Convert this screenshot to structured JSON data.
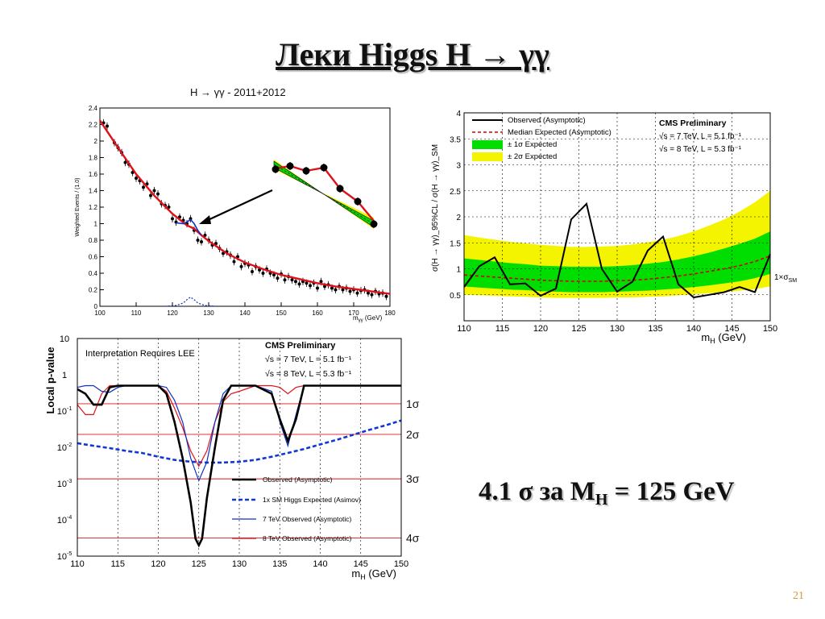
{
  "slide": {
    "title": "Леки Higgs H → γγ",
    "statement": {
      "prefix": "4.1 σ за M",
      "subscript": "H",
      "suffix": " = 125 GeV"
    },
    "page_number": "21"
  },
  "colors": {
    "fit": "#e0101a",
    "data_points": "#000000",
    "band_1sigma": "#00dd00",
    "band_2sigma": "#f4f400",
    "expected": "#d00000",
    "observed_7tev": "#1030c0",
    "expected_asimov": "#1038d8",
    "observed_8tev": "#e0141a"
  },
  "chart_data": [
    {
      "type": "scatter",
      "title": "H → γγ - 2011+2012",
      "xlabel": "m_γγ (GeV)",
      "ylabel": "Weighted Events / (1.0)",
      "xlim": [
        100,
        180
      ],
      "ylim": [
        0,
        2.4
      ],
      "x_ticks": [
        100,
        110,
        120,
        130,
        140,
        150,
        160,
        170,
        180
      ],
      "y_ticks": [
        0,
        0.2,
        0.4,
        0.6,
        0.8,
        1,
        1.2,
        1.4,
        1.6,
        1.8,
        2,
        2.2,
        2.4
      ],
      "series": [
        {
          "kind": "data",
          "x": [
            101,
            102,
            104,
            105,
            106,
            107,
            108,
            109,
            110,
            111,
            112,
            113,
            114,
            115,
            116,
            117,
            118,
            119,
            120,
            121,
            122,
            123,
            124,
            125,
            126,
            127,
            128,
            129,
            130,
            131,
            132,
            133,
            134,
            135,
            136,
            137,
            138,
            139,
            140,
            141,
            142,
            143,
            144,
            145,
            146,
            147,
            148,
            149,
            150,
            151,
            152,
            153,
            154,
            155,
            156,
            157,
            158,
            159,
            160,
            161,
            162,
            163,
            164,
            165,
            166,
            167,
            168,
            169,
            170,
            171,
            172,
            173,
            174,
            175,
            176,
            177,
            178,
            179
          ],
          "y": [
            2.22,
            2.18,
            1.98,
            1.92,
            1.86,
            1.74,
            1.72,
            1.62,
            1.55,
            1.52,
            1.44,
            1.48,
            1.34,
            1.4,
            1.36,
            1.24,
            1.22,
            1.2,
            1.06,
            1.02,
            1.08,
            1.04,
            1.0,
            1.06,
            0.92,
            0.8,
            0.78,
            0.86,
            0.8,
            0.74,
            0.76,
            0.7,
            0.64,
            0.66,
            0.62,
            0.54,
            0.6,
            0.48,
            0.52,
            0.5,
            0.42,
            0.48,
            0.44,
            0.4,
            0.45,
            0.4,
            0.38,
            0.34,
            0.39,
            0.32,
            0.36,
            0.32,
            0.3,
            0.27,
            0.3,
            0.28,
            0.25,
            0.28,
            0.22,
            0.3,
            0.24,
            0.26,
            0.22,
            0.2,
            0.24,
            0.2,
            0.22,
            0.18,
            0.2,
            0.16,
            0.19,
            0.2,
            0.16,
            0.14,
            0.18,
            0.15,
            0.16,
            0.12
          ]
        },
        {
          "kind": "fit",
          "x": [
            100,
            105,
            110,
            115,
            120,
            124,
            126,
            128,
            130,
            135,
            140,
            145,
            150,
            155,
            160,
            165,
            170,
            175,
            180
          ],
          "y": [
            2.25,
            1.92,
            1.6,
            1.34,
            1.12,
            0.98,
            0.94,
            0.86,
            0.79,
            0.64,
            0.53,
            0.45,
            0.38,
            0.33,
            0.28,
            0.24,
            0.21,
            0.18,
            0.15
          ]
        },
        {
          "kind": "signal_dotted",
          "x": [
            118,
            121,
            123,
            124,
            125,
            126,
            127,
            129,
            132
          ],
          "y": [
            0.0,
            0.01,
            0.04,
            0.08,
            0.11,
            0.08,
            0.04,
            0.01,
            0.0
          ]
        }
      ]
    },
    {
      "type": "area",
      "xlabel": "m_H (GeV)",
      "ylabel": "σ(H → γγ)_95%CL / σ(H → γγ)_SM",
      "xlim": [
        110,
        150
      ],
      "ylim": [
        0,
        4
      ],
      "x_ticks": [
        110,
        115,
        120,
        125,
        130,
        135,
        140,
        145,
        150
      ],
      "y_ticks": [
        0.5,
        1,
        1.5,
        2,
        2.5,
        3,
        3.5,
        4
      ],
      "reference_label": "1×σ_SM",
      "annotations": [
        "CMS Preliminary",
        "√s = 7 TeV, L = 5.1 fb⁻¹",
        "√s = 8 TeV, L = 5.3 fb⁻¹"
      ],
      "legend": [
        "Observed (Asymptotic)",
        "Median Expected (Asymptotic)",
        "± 1σ Expected",
        "± 2σ Expected"
      ],
      "x": [
        110,
        112,
        114,
        116,
        118,
        120,
        122,
        124,
        126,
        128,
        130,
        132,
        134,
        136,
        138,
        140,
        142,
        144,
        146,
        148,
        150
      ],
      "series": [
        {
          "name": "Observed (Asymptotic)",
          "values": [
            0.65,
            1.05,
            1.22,
            0.7,
            0.72,
            0.48,
            0.62,
            1.95,
            2.25,
            1.0,
            0.56,
            0.75,
            1.35,
            1.62,
            0.7,
            0.45,
            0.5,
            0.55,
            0.65,
            0.55,
            1.28
          ]
        },
        {
          "name": "Median Expected (Asymptotic)",
          "values": [
            0.88,
            0.86,
            0.84,
            0.82,
            0.8,
            0.78,
            0.77,
            0.76,
            0.76,
            0.76,
            0.77,
            0.78,
            0.8,
            0.83,
            0.86,
            0.9,
            0.95,
            1.0,
            1.06,
            1.14,
            1.25
          ]
        },
        {
          "name": "± 1σ Expected",
          "lower": [
            0.66,
            0.64,
            0.62,
            0.6,
            0.59,
            0.57,
            0.56,
            0.55,
            0.55,
            0.55,
            0.56,
            0.57,
            0.58,
            0.6,
            0.62,
            0.65,
            0.68,
            0.72,
            0.76,
            0.82,
            0.9
          ],
          "upper": [
            1.2,
            1.17,
            1.14,
            1.11,
            1.09,
            1.06,
            1.05,
            1.04,
            1.04,
            1.04,
            1.05,
            1.07,
            1.1,
            1.13,
            1.18,
            1.24,
            1.31,
            1.39,
            1.48,
            1.58,
            1.72
          ]
        },
        {
          "name": "± 2σ Expected",
          "lower": [
            0.5,
            0.49,
            0.48,
            0.47,
            0.46,
            0.45,
            0.44,
            0.44,
            0.44,
            0.44,
            0.45,
            0.45,
            0.46,
            0.47,
            0.49,
            0.51,
            0.53,
            0.55,
            0.58,
            0.61,
            0.66
          ],
          "upper": [
            1.65,
            1.6,
            1.56,
            1.52,
            1.49,
            1.46,
            1.44,
            1.42,
            1.42,
            1.43,
            1.44,
            1.47,
            1.51,
            1.56,
            1.63,
            1.72,
            1.83,
            1.95,
            2.1,
            2.28,
            2.5
          ]
        }
      ]
    },
    {
      "type": "line",
      "xlabel": "m_H (GeV)",
      "ylabel": "Local p-value",
      "y_scale": "log",
      "xlim": [
        110,
        150
      ],
      "ylim": [
        1e-05,
        10
      ],
      "x_ticks": [
        110,
        115,
        120,
        125,
        130,
        135,
        140,
        145,
        150
      ],
      "y_ticks": [
        {
          "base": "10",
          "exp": "-5"
        },
        {
          "base": "10",
          "exp": "-4"
        },
        {
          "base": "10",
          "exp": "-3"
        },
        {
          "base": "10",
          "exp": "-2"
        },
        {
          "base": "10",
          "exp": "-1"
        },
        {
          "base": "1",
          "exp": ""
        },
        {
          "base": "10",
          "exp": ""
        }
      ],
      "note": "Interpretation Requires LEE",
      "annotations": [
        "CMS Preliminary",
        "√s = 7 TeV, L = 5.1 fb⁻¹",
        "√s = 8 TeV, L = 5.3 fb⁻¹"
      ],
      "sigma_lines": [
        {
          "label": "1σ",
          "p": 0.1587
        },
        {
          "label": "2σ",
          "p": 0.02275
        },
        {
          "label": "3σ",
          "p": 0.00135
        },
        {
          "label": "4σ",
          "p": 3.17e-05
        }
      ],
      "legend": [
        "Observed (Asymptotic)",
        "1x SM Higgs Expected (Asimov)",
        "7 TeV Observed (Asymptotic)",
        "8 TeV Observed (Asymptotic)"
      ],
      "series": [
        {
          "name": "Observed (Asymptotic)",
          "x": [
            110,
            111,
            112,
            113,
            114,
            115,
            116,
            118,
            120,
            121,
            122,
            123,
            124,
            124.6,
            125,
            125.4,
            126,
            127,
            128,
            129,
            130,
            132,
            134,
            135,
            136,
            137,
            138,
            140,
            142,
            145,
            150
          ],
          "y": [
            0.4,
            0.3,
            0.15,
            0.15,
            0.45,
            0.5,
            0.5,
            0.5,
            0.5,
            0.3,
            0.05,
            0.005,
            0.0003,
            3e-05,
            2e-05,
            3e-05,
            0.0004,
            0.01,
            0.2,
            0.5,
            0.5,
            0.5,
            0.3,
            0.06,
            0.015,
            0.06,
            0.5,
            0.5,
            0.5,
            0.5,
            0.5
          ]
        },
        {
          "name": "1x SM Higgs Expected (Asimov)",
          "x": [
            110,
            112,
            114,
            116,
            118,
            120,
            122,
            124,
            126,
            128,
            130,
            132,
            134,
            136,
            138,
            140,
            142,
            144,
            146,
            148,
            150
          ],
          "y": [
            0.013,
            0.011,
            0.0095,
            0.008,
            0.007,
            0.0055,
            0.0045,
            0.004,
            0.0038,
            0.0038,
            0.004,
            0.0045,
            0.0055,
            0.007,
            0.009,
            0.012,
            0.016,
            0.022,
            0.03,
            0.04,
            0.055
          ]
        },
        {
          "name": "7 TeV Observed (Asymptotic)",
          "x": [
            110,
            111,
            112,
            113,
            114,
            115,
            116,
            118,
            120,
            121,
            122,
            123,
            124,
            125,
            126,
            127,
            128,
            129,
            130,
            132,
            134,
            135,
            136,
            137,
            138,
            140,
            145,
            150
          ],
          "y": [
            0.45,
            0.5,
            0.5,
            0.35,
            0.33,
            0.45,
            0.5,
            0.5,
            0.5,
            0.45,
            0.2,
            0.05,
            0.005,
            0.0012,
            0.004,
            0.05,
            0.3,
            0.5,
            0.5,
            0.5,
            0.35,
            0.05,
            0.011,
            0.08,
            0.5,
            0.5,
            0.5,
            0.5
          ]
        },
        {
          "name": "8 TeV Observed (Asymptotic)",
          "x": [
            110,
            111,
            112,
            113,
            114,
            116,
            118,
            120,
            121,
            122,
            123,
            124,
            125,
            126,
            127,
            128,
            129,
            130,
            132,
            134,
            135,
            136,
            137,
            138,
            140,
            145,
            150
          ],
          "y": [
            0.15,
            0.08,
            0.08,
            0.3,
            0.5,
            0.5,
            0.5,
            0.5,
            0.35,
            0.12,
            0.035,
            0.008,
            0.003,
            0.008,
            0.05,
            0.18,
            0.3,
            0.35,
            0.5,
            0.5,
            0.45,
            0.3,
            0.45,
            0.5,
            0.5,
            0.5,
            0.5
          ]
        }
      ]
    }
  ]
}
